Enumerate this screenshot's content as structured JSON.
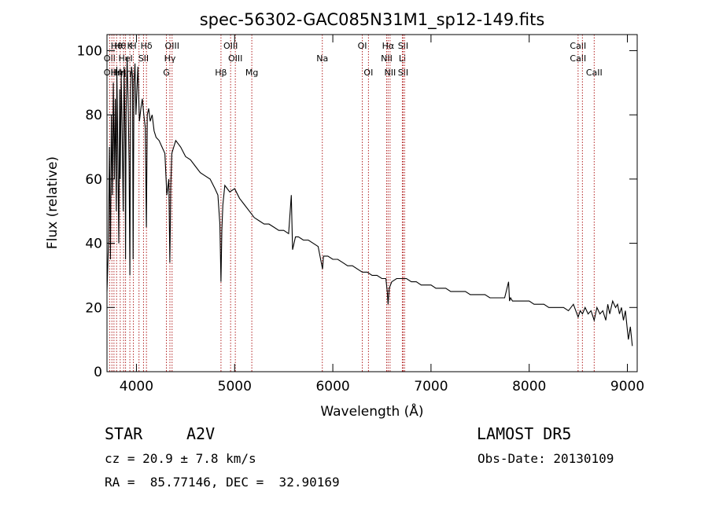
{
  "chart_data": {
    "type": "line",
    "title": "spec-56302-GAC085N31M1_sp12-149.fits",
    "xlabel": "Wavelength (Å)",
    "ylabel": "Flux (relative)",
    "xlim": [
      3700,
      9100
    ],
    "ylim": [
      0,
      105
    ],
    "xticks": [
      4000,
      5000,
      6000,
      7000,
      8000,
      9000
    ],
    "yticks": [
      0,
      20,
      40,
      60,
      80,
      100
    ],
    "grid": false,
    "line_color": "#000000",
    "marker_color": "#b22222",
    "series": [
      {
        "x": [
          3700,
          3715,
          3725,
          3735,
          3745,
          3755,
          3765,
          3775,
          3785,
          3795,
          3800,
          3810,
          3820,
          3830,
          3835,
          3845,
          3855,
          3865,
          3875,
          3885,
          3889,
          3895,
          3905,
          3915,
          3925,
          3933,
          3940,
          3950,
          3960,
          3966,
          3975,
          3985,
          3995,
          4005,
          4015,
          4030,
          4045,
          4060,
          4075,
          4090,
          4101,
          4110,
          4125,
          4140,
          4160,
          4180,
          4200,
          4230,
          4260,
          4290,
          4310,
          4330,
          4340,
          4345,
          4350,
          4360,
          4380,
          4400,
          4450,
          4500,
          4550,
          4600,
          4650,
          4700,
          4750,
          4800,
          4830,
          4850,
          4861,
          4870,
          4880,
          4900,
          4950,
          5000,
          5050,
          5100,
          5150,
          5200,
          5250,
          5300,
          5350,
          5400,
          5450,
          5500,
          5550,
          5577,
          5590,
          5620,
          5650,
          5700,
          5750,
          5800,
          5850,
          5895,
          5905,
          5950,
          6000,
          6050,
          6100,
          6150,
          6200,
          6250,
          6300,
          6350,
          6400,
          6450,
          6500,
          6540,
          6555,
          6563,
          6575,
          6600,
          6650,
          6700,
          6750,
          6800,
          6850,
          6900,
          6950,
          7000,
          7050,
          7100,
          7150,
          7200,
          7250,
          7300,
          7350,
          7400,
          7450,
          7500,
          7550,
          7600,
          7650,
          7700,
          7750,
          7790,
          7800,
          7810,
          7830,
          7850,
          7900,
          7950,
          8000,
          8050,
          8100,
          8150,
          8200,
          8250,
          8300,
          8350,
          8400,
          8450,
          8498,
          8520,
          8542,
          8570,
          8600,
          8630,
          8662,
          8690,
          8720,
          8750,
          8780,
          8800,
          8820,
          8850,
          8880,
          8900,
          8920,
          8940,
          8960,
          8980,
          9000,
          9010,
          9030,
          9050
        ],
        "y": [
          25,
          40,
          70,
          35,
          80,
          55,
          90,
          60,
          85,
          50,
          95,
          70,
          40,
          88,
          60,
          92,
          75,
          50,
          95,
          70,
          35,
          80,
          98,
          85,
          65,
          30,
          88,
          95,
          92,
          35,
          90,
          96,
          80,
          88,
          95,
          78,
          82,
          85,
          80,
          76,
          45,
          80,
          82,
          78,
          80,
          75,
          73,
          72,
          70,
          68,
          55,
          60,
          34,
          45,
          58,
          68,
          70,
          72,
          70,
          67,
          66,
          64,
          62,
          61,
          60,
          57,
          55,
          46,
          28,
          44,
          52,
          58,
          56,
          57,
          54,
          52,
          50,
          48,
          47,
          46,
          46,
          45,
          44,
          44,
          43,
          55,
          38,
          42,
          42,
          41,
          41,
          40,
          39,
          32,
          36,
          36,
          35,
          35,
          34,
          33,
          33,
          32,
          31,
          31,
          30,
          30,
          29,
          29,
          25,
          21,
          26,
          28,
          29,
          29,
          29,
          28,
          28,
          27,
          27,
          27,
          26,
          26,
          26,
          25,
          25,
          25,
          25,
          24,
          24,
          24,
          24,
          23,
          23,
          23,
          23,
          28,
          22,
          23,
          22,
          22,
          22,
          22,
          22,
          21,
          21,
          21,
          20,
          20,
          20,
          20,
          19,
          21,
          17,
          19,
          18,
          20,
          18,
          19,
          16,
          20,
          18,
          19,
          16,
          21,
          18,
          22,
          20,
          21,
          18,
          20,
          16,
          19,
          13,
          10,
          14,
          8
        ]
      }
    ],
    "line_markers": [
      {
        "x": 3727,
        "upper": "",
        "mid": "OII",
        "low": "OII"
      },
      {
        "x": 3750,
        "upper": "",
        "mid": "",
        "low": ""
      },
      {
        "x": 3771,
        "upper": "",
        "mid": "",
        "low": ""
      },
      {
        "x": 3798,
        "upper": "Hθ",
        "mid": "",
        "low": "Hη"
      },
      {
        "x": 3835,
        "upper": "Hθ",
        "mid": "",
        "low": "Hη"
      },
      {
        "x": 3869,
        "upper": "",
        "mid": "",
        "low": ""
      },
      {
        "x": 3889,
        "upper": "",
        "mid": "HeI",
        "low": "Hη"
      },
      {
        "x": 3933,
        "upper": "K",
        "mid": "",
        "low": ""
      },
      {
        "x": 3969,
        "upper": "H",
        "mid": "",
        "low": ""
      },
      {
        "x": 4026,
        "upper": "",
        "mid": "",
        "low": ""
      },
      {
        "x": 4072,
        "upper": "",
        "mid": "SII",
        "low": ""
      },
      {
        "x": 4102,
        "upper": "Hδ",
        "mid": "",
        "low": ""
      },
      {
        "x": 4305,
        "upper": "",
        "mid": "",
        "low": "G"
      },
      {
        "x": 4341,
        "upper": "",
        "mid": "Hγ",
        "low": ""
      },
      {
        "x": 4363,
        "upper": "OIII",
        "mid": "",
        "low": ""
      },
      {
        "x": 4861,
        "upper": "",
        "mid": "",
        "low": "Hβ"
      },
      {
        "x": 4959,
        "upper": "OIII",
        "mid": "",
        "low": ""
      },
      {
        "x": 5007,
        "upper": "",
        "mid": "OIII",
        "low": ""
      },
      {
        "x": 5175,
        "upper": "",
        "mid": "",
        "low": "Mg"
      },
      {
        "x": 5893,
        "upper": "",
        "mid": "Na",
        "low": ""
      },
      {
        "x": 6300,
        "upper": "OI",
        "mid": "",
        "low": ""
      },
      {
        "x": 6363,
        "upper": "",
        "mid": "",
        "low": "OI"
      },
      {
        "x": 6548,
        "upper": "",
        "mid": "NII",
        "low": ""
      },
      {
        "x": 6563,
        "upper": "Hα",
        "mid": "",
        "low": ""
      },
      {
        "x": 6583,
        "upper": "",
        "mid": "",
        "low": "NII"
      },
      {
        "x": 6708,
        "upper": "",
        "mid": "Li",
        "low": ""
      },
      {
        "x": 6716,
        "upper": "SII",
        "mid": "",
        "low": "SII"
      },
      {
        "x": 6731,
        "upper": "",
        "mid": "",
        "low": ""
      },
      {
        "x": 8498,
        "upper": "CaII",
        "mid": "CaII",
        "low": ""
      },
      {
        "x": 8542,
        "upper": "",
        "mid": "",
        "low": ""
      },
      {
        "x": 8662,
        "upper": "",
        "mid": "",
        "low": "CaII"
      }
    ]
  },
  "info": {
    "class_label": "STAR",
    "subclass": "A2V",
    "cz": "cz = 20.9 ± 7.8 km/s",
    "coords": "RA =  85.77146, DEC =  32.90169",
    "survey": "LAMOST DR5",
    "obs_date": "Obs-Date: 20130109"
  }
}
